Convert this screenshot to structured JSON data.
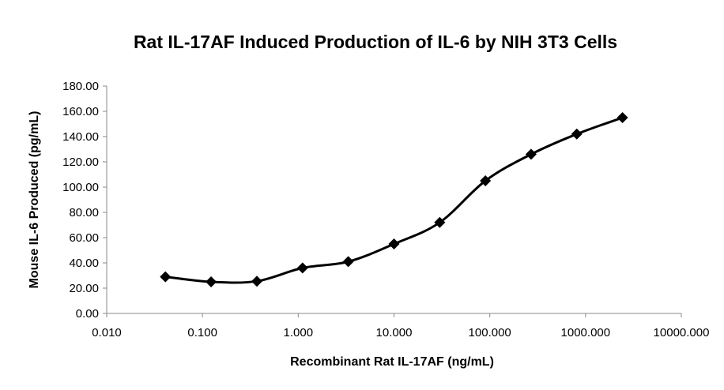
{
  "chart_data": {
    "type": "scatter",
    "title": "Rat IL-17AF Induced Production of IL-6 by NIH 3T3 Cells",
    "xlabel": "Recombinant Rat IL-17AF (ng/mL)",
    "ylabel": "Mouse IL-6 Produced (pg/mL)",
    "x_scale": "log",
    "xlim": [
      0.01,
      10000
    ],
    "ylim": [
      0,
      180
    ],
    "grid": false,
    "legend": "none",
    "line_style": "smoothed",
    "marker": "diamond",
    "color": "#000000",
    "x_ticks": [
      "0.010",
      "0.100",
      "1.000",
      "10.000",
      "100.000",
      "1000.000",
      "10000.000"
    ],
    "x_tick_values": [
      0.01,
      0.1,
      1,
      10,
      100,
      1000,
      10000
    ],
    "y_ticks": [
      "0.00",
      "20.00",
      "40.00",
      "60.00",
      "80.00",
      "100.00",
      "120.00",
      "140.00",
      "160.00",
      "180.00"
    ],
    "y_tick_values": [
      0,
      20,
      40,
      60,
      80,
      100,
      120,
      140,
      160,
      180
    ],
    "series": [
      {
        "x": [
          0.041,
          0.123,
          0.37,
          1.11,
          3.33,
          10.0,
          30.0,
          90.0,
          270,
          810,
          2430
        ],
        "y": [
          29,
          25,
          25.5,
          36,
          41,
          55,
          72,
          105,
          126,
          142,
          155
        ]
      }
    ]
  }
}
